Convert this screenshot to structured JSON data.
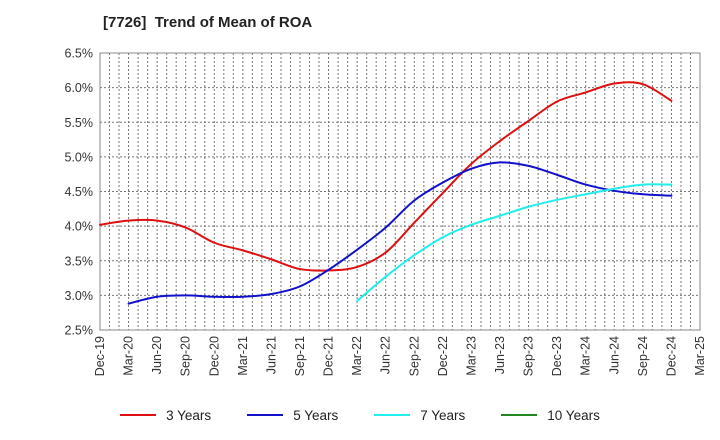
{
  "chart_data": {
    "type": "line",
    "title": "[7726]  Trend of Mean of ROA",
    "xlabel": "",
    "ylabel": "",
    "ylim": [
      2.5,
      6.5
    ],
    "y_ticks": [
      "2.5%",
      "3.0%",
      "3.5%",
      "4.0%",
      "4.5%",
      "5.0%",
      "5.5%",
      "6.0%",
      "6.5%"
    ],
    "x_ticks": [
      "Dec-19",
      "Mar-20",
      "Jun-20",
      "Sep-20",
      "Dec-20",
      "Mar-21",
      "Jun-21",
      "Sep-21",
      "Dec-21",
      "Mar-22",
      "Jun-22",
      "Sep-22",
      "Dec-22",
      "Mar-23",
      "Jun-23",
      "Sep-23",
      "Dec-23",
      "Mar-24",
      "Jun-24",
      "Sep-24",
      "Dec-24",
      "Mar-25"
    ],
    "grid": true,
    "legend_position": "bottom",
    "series": [
      {
        "name": "3 Years",
        "color": "#dd1111",
        "values": [
          4.02,
          4.08,
          4.08,
          3.98,
          3.76,
          3.65,
          3.52,
          3.38,
          3.36,
          3.41,
          3.62,
          4.05,
          4.48,
          4.9,
          5.23,
          5.52,
          5.8,
          5.93,
          6.06,
          6.05,
          5.81,
          null
        ]
      },
      {
        "name": "5 Years",
        "color": "#1111cc",
        "values": [
          null,
          2.88,
          2.98,
          3.0,
          2.98,
          2.98,
          3.02,
          3.13,
          3.37,
          3.66,
          3.98,
          4.37,
          4.63,
          4.83,
          4.92,
          4.87,
          4.74,
          4.6,
          4.51,
          4.46,
          4.44,
          null
        ]
      },
      {
        "name": "7 Years",
        "color": "#22eeee",
        "values": [
          null,
          null,
          null,
          null,
          null,
          null,
          null,
          null,
          null,
          2.92,
          3.27,
          3.58,
          3.84,
          4.02,
          4.15,
          4.28,
          4.38,
          4.46,
          4.54,
          4.6,
          4.6,
          null
        ]
      },
      {
        "name": "10 Years",
        "color": "#228822",
        "values": [
          null,
          null,
          null,
          null,
          null,
          null,
          null,
          null,
          null,
          null,
          null,
          null,
          null,
          null,
          null,
          null,
          null,
          null,
          null,
          null,
          null,
          null
        ]
      }
    ]
  }
}
